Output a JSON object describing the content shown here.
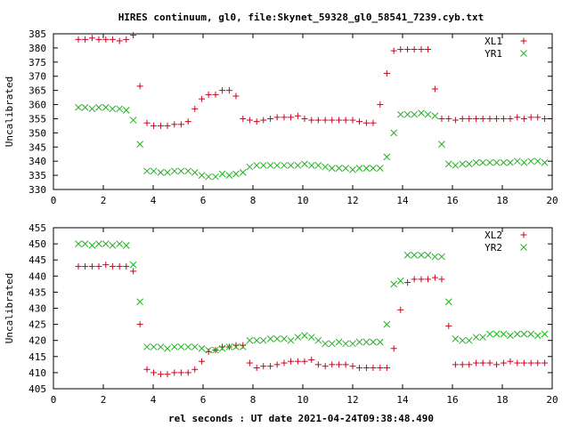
{
  "title": "HIRES continuum, gl0, file:Skynet_59328_gl0_58541_7239.cyb.txt",
  "xlabel": "rel seconds : UT date 2021-04-24T09:38:48.490",
  "colors": {
    "red": "#d0001e",
    "green": "#22b022"
  },
  "chart_data": [
    {
      "type": "scatter",
      "ylabel": "Uncalibrated",
      "xlim": [
        0,
        20
      ],
      "ylim": [
        330,
        385
      ],
      "xticks": [
        0,
        2,
        4,
        6,
        8,
        10,
        12,
        14,
        16,
        18,
        20
      ],
      "yticks": [
        330,
        335,
        340,
        345,
        350,
        355,
        360,
        365,
        370,
        375,
        380,
        385
      ],
      "legend_position": "top-right",
      "series": [
        {
          "name": "XL1",
          "marker": "plus",
          "color": "#d0001e",
          "x": [
            1.0,
            1.27,
            1.55,
            1.82,
            2.1,
            2.37,
            2.65,
            2.92,
            3.2,
            3.47,
            3.75,
            4.02,
            4.3,
            4.57,
            4.85,
            5.12,
            5.4,
            5.67,
            5.95,
            6.22,
            6.5,
            6.77,
            7.05,
            7.32,
            7.6,
            7.87,
            8.15,
            8.42,
            8.7,
            8.97,
            9.25,
            9.52,
            9.8,
            10.07,
            10.35,
            10.62,
            10.9,
            11.17,
            11.45,
            11.72,
            12.0,
            12.27,
            12.55,
            12.82,
            13.1,
            13.37,
            13.65,
            13.92,
            14.2,
            14.47,
            14.75,
            15.02,
            15.3,
            15.57,
            15.85,
            16.12,
            16.4,
            16.67,
            16.95,
            17.22,
            17.5,
            17.77,
            18.05,
            18.32,
            18.6,
            18.87,
            19.15,
            19.42,
            19.7
          ],
          "y": [
            383,
            383,
            383.5,
            383,
            383,
            383,
            382.5,
            383,
            384.5,
            366.5,
            353.5,
            352.5,
            352.5,
            352.5,
            353,
            353,
            354,
            358.5,
            362,
            363.5,
            363.5,
            365,
            365,
            363,
            355,
            354.5,
            354,
            354.5,
            355,
            355.5,
            355.5,
            355.5,
            356,
            355,
            354.5,
            354.5,
            354.5,
            354.5,
            354.5,
            354.5,
            354.5,
            354,
            353.5,
            353.5,
            360,
            371,
            379,
            379.5,
            379.5,
            379.5,
            379.5,
            379.5,
            365.5,
            355,
            355,
            354.5,
            355,
            355,
            355,
            355,
            355,
            355,
            355,
            355,
            355.5,
            355,
            355.5,
            355.5,
            355
          ]
        },
        {
          "name": "YR1",
          "marker": "cross",
          "color": "#22b022",
          "x": [
            1.0,
            1.27,
            1.55,
            1.82,
            2.1,
            2.37,
            2.65,
            2.92,
            3.2,
            3.47,
            3.75,
            4.02,
            4.3,
            4.57,
            4.85,
            5.12,
            5.4,
            5.67,
            5.95,
            6.22,
            6.5,
            6.77,
            7.05,
            7.32,
            7.6,
            7.87,
            8.15,
            8.42,
            8.7,
            8.97,
            9.25,
            9.52,
            9.8,
            10.07,
            10.35,
            10.62,
            10.9,
            11.17,
            11.45,
            11.72,
            12.0,
            12.27,
            12.55,
            12.82,
            13.1,
            13.37,
            13.65,
            13.92,
            14.2,
            14.47,
            14.75,
            15.02,
            15.3,
            15.57,
            15.85,
            16.12,
            16.4,
            16.67,
            16.95,
            17.22,
            17.5,
            17.77,
            18.05,
            18.32,
            18.6,
            18.87,
            19.15,
            19.42,
            19.7
          ],
          "y": [
            359,
            359,
            358.5,
            359,
            359,
            358.5,
            358.5,
            358,
            354.5,
            346,
            336.5,
            336.5,
            336,
            336,
            336.5,
            336.5,
            336.5,
            336,
            335,
            334.5,
            334.5,
            335.5,
            335,
            335.5,
            336,
            338,
            338.5,
            338.5,
            338.5,
            338.5,
            338.5,
            338.5,
            338.5,
            339,
            338.5,
            338.5,
            338,
            337.5,
            337.5,
            337.5,
            337,
            337.5,
            337.5,
            337.5,
            337.5,
            341.5,
            350,
            356.5,
            356.5,
            356.5,
            357,
            356.5,
            356,
            346,
            339,
            338.5,
            339,
            339,
            339.5,
            339.5,
            339.5,
            339.5,
            339.5,
            339.5,
            340,
            339.5,
            340,
            340,
            339.5
          ]
        }
      ]
    },
    {
      "type": "scatter",
      "ylabel": "Uncalibrated",
      "xlim": [
        0,
        20
      ],
      "ylim": [
        405,
        455
      ],
      "xticks": [
        0,
        2,
        4,
        6,
        8,
        10,
        12,
        14,
        16,
        18,
        20
      ],
      "yticks": [
        405,
        410,
        415,
        420,
        425,
        430,
        435,
        440,
        445,
        450,
        455
      ],
      "legend_position": "top-right",
      "series": [
        {
          "name": "XL2",
          "marker": "plus",
          "color": "#d0001e",
          "x": [
            1.0,
            1.27,
            1.55,
            1.82,
            2.1,
            2.37,
            2.65,
            2.92,
            3.2,
            3.47,
            3.75,
            4.02,
            4.3,
            4.57,
            4.85,
            5.12,
            5.4,
            5.67,
            5.95,
            6.22,
            6.5,
            6.77,
            7.05,
            7.32,
            7.6,
            7.87,
            8.15,
            8.42,
            8.7,
            8.97,
            9.25,
            9.52,
            9.8,
            10.07,
            10.35,
            10.62,
            10.9,
            11.17,
            11.45,
            11.72,
            12.0,
            12.27,
            12.55,
            12.82,
            13.1,
            13.37,
            13.65,
            13.92,
            14.2,
            14.47,
            14.75,
            15.02,
            15.3,
            15.57,
            15.85,
            16.12,
            16.4,
            16.67,
            16.95,
            17.22,
            17.5,
            17.77,
            18.05,
            18.32,
            18.6,
            18.87,
            19.15,
            19.42,
            19.7
          ],
          "y": [
            443,
            443,
            443,
            443,
            443.5,
            443,
            443,
            443,
            441.5,
            425,
            411,
            410,
            409.5,
            409.5,
            410,
            410,
            410,
            411,
            413.5,
            416.5,
            417,
            418,
            418,
            418.5,
            418.5,
            413,
            411.5,
            412,
            412,
            412.5,
            413,
            413.5,
            413.5,
            413.5,
            414,
            412.5,
            412,
            412.5,
            412.5,
            412.5,
            412,
            411.5,
            411.5,
            411.5,
            411.5,
            411.5,
            417.5,
            429.5,
            438,
            439,
            439,
            439,
            439.5,
            439,
            424.5,
            412.5,
            412.5,
            412.5,
            413,
            413,
            413,
            412.5,
            413,
            413.5,
            413,
            413,
            413,
            413,
            413
          ]
        },
        {
          "name": "YR2",
          "marker": "cross",
          "color": "#22b022",
          "x": [
            1.0,
            1.27,
            1.55,
            1.82,
            2.1,
            2.37,
            2.65,
            2.92,
            3.2,
            3.47,
            3.75,
            4.02,
            4.3,
            4.57,
            4.85,
            5.12,
            5.4,
            5.67,
            5.95,
            6.22,
            6.5,
            6.77,
            7.05,
            7.32,
            7.6,
            7.87,
            8.15,
            8.42,
            8.7,
            8.97,
            9.25,
            9.52,
            9.8,
            10.07,
            10.35,
            10.62,
            10.9,
            11.17,
            11.45,
            11.72,
            12.0,
            12.27,
            12.55,
            12.82,
            13.1,
            13.37,
            13.65,
            13.92,
            14.2,
            14.47,
            14.75,
            15.02,
            15.3,
            15.57,
            15.85,
            16.12,
            16.4,
            16.67,
            16.95,
            17.22,
            17.5,
            17.77,
            18.05,
            18.32,
            18.6,
            18.87,
            19.15,
            19.42,
            19.7
          ],
          "y": [
            450,
            450,
            449.5,
            450,
            450,
            449.5,
            450,
            449.5,
            443.5,
            432,
            418,
            418,
            418,
            417.5,
            418,
            418,
            418,
            418,
            417.5,
            417,
            417,
            417.5,
            418,
            418,
            418,
            420,
            420,
            420,
            420.5,
            420.5,
            420.5,
            420,
            421,
            421.5,
            421,
            420,
            419,
            419,
            419.5,
            419,
            419,
            419.5,
            419.5,
            419.5,
            419.5,
            425,
            437.5,
            438.5,
            446.5,
            446.5,
            446.5,
            446.5,
            446,
            446,
            432,
            420.5,
            420,
            420,
            421,
            421,
            422,
            422,
            422,
            421.5,
            422,
            422,
            422,
            421.5,
            422
          ]
        }
      ]
    }
  ]
}
